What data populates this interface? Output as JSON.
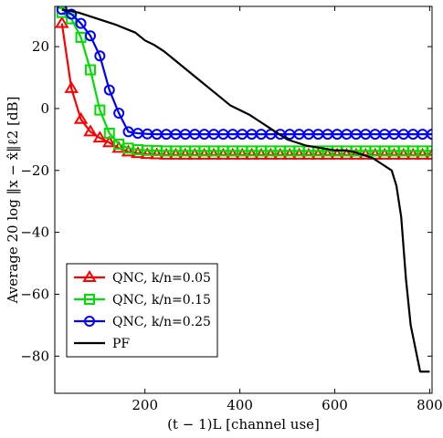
{
  "chart_data": {
    "type": "line",
    "title": "",
    "xlabel": "(t − 1)L  [channel use]",
    "ylabel": "Average 20 log ‖x − x̂‖ℓ2 [dB]",
    "xlim": [
      10,
      805
    ],
    "ylim": [
      -92,
      33
    ],
    "xticks": [
      200,
      400,
      600,
      800
    ],
    "yticks": [
      20,
      0,
      -20,
      -40,
      -60,
      -80
    ],
    "grid": false,
    "legend_position": "lower-left",
    "series": [
      {
        "name": "QNC, k/n=0.05",
        "color": "#ff0000",
        "marker": "triangle",
        "x": [
          25,
          45,
          65,
          85,
          105,
          125,
          145,
          165,
          185,
          205,
          225,
          245,
          265,
          285,
          305,
          325,
          345,
          365,
          385,
          405,
          425,
          445,
          465,
          485,
          505,
          525,
          545,
          565,
          585,
          605,
          625,
          645,
          665,
          685,
          705,
          725,
          745,
          765,
          785,
          805
        ],
        "y": [
          27.5,
          6.5,
          -3.5,
          -7.5,
          -9.5,
          -11,
          -12.8,
          -14,
          -14.5,
          -14.8,
          -14.9,
          -15,
          -15,
          -15,
          -15,
          -15,
          -15,
          -15,
          -15,
          -15,
          -15,
          -15,
          -15,
          -15,
          -15,
          -15,
          -15,
          -15,
          -15,
          -15,
          -15,
          -15,
          -15,
          -15,
          -15,
          -15,
          -15,
          -15,
          -15,
          -15
        ]
      },
      {
        "name": "QNC, k/n=0.15",
        "color": "#00dd00",
        "marker": "square",
        "x": [
          25,
          45,
          65,
          85,
          105,
          125,
          145,
          165,
          185,
          205,
          225,
          245,
          265,
          285,
          305,
          325,
          345,
          365,
          385,
          405,
          425,
          445,
          465,
          485,
          505,
          525,
          545,
          565,
          585,
          605,
          625,
          645,
          665,
          685,
          705,
          725,
          745,
          765,
          785,
          805
        ],
        "y": [
          31,
          29,
          23,
          12.5,
          -0.5,
          -8,
          -11.5,
          -12.8,
          -13.3,
          -13.5,
          -13.6,
          -13.7,
          -13.7,
          -13.7,
          -13.7,
          -13.7,
          -13.7,
          -13.7,
          -13.7,
          -13.7,
          -13.7,
          -13.7,
          -13.7,
          -13.7,
          -13.7,
          -13.7,
          -13.7,
          -13.7,
          -13.7,
          -13.7,
          -13.7,
          -13.7,
          -13.7,
          -13.7,
          -13.7,
          -13.7,
          -13.7,
          -13.7,
          -13.7,
          -13.7
        ]
      },
      {
        "name": "QNC, k/n=0.25",
        "color": "#0000ff",
        "marker": "circle",
        "x": [
          25,
          45,
          65,
          85,
          105,
          125,
          145,
          165,
          185,
          205,
          225,
          245,
          265,
          285,
          305,
          325,
          345,
          365,
          385,
          405,
          425,
          445,
          465,
          485,
          505,
          525,
          545,
          565,
          585,
          605,
          625,
          645,
          665,
          685,
          705,
          725,
          745,
          765,
          785,
          805
        ],
        "y": [
          32,
          30.5,
          27.5,
          23.5,
          17,
          6,
          -1.5,
          -7.5,
          -8,
          -8.2,
          -8.3,
          -8.3,
          -8.3,
          -8.3,
          -8.3,
          -8.3,
          -8.3,
          -8.3,
          -8.3,
          -8.3,
          -8.3,
          -8.3,
          -8.3,
          -8.3,
          -8.3,
          -8.3,
          -8.3,
          -8.3,
          -8.3,
          -8.3,
          -8.3,
          -8.3,
          -8.3,
          -8.3,
          -8.3,
          -8.3,
          -8.3,
          -8.3,
          -8.3,
          -8.3
        ]
      },
      {
        "name": "PF",
        "color": "#000000",
        "marker": "none",
        "x": [
          25,
          60,
          100,
          140,
          180,
          200,
          220,
          240,
          260,
          280,
          300,
          320,
          340,
          360,
          380,
          400,
          420,
          440,
          460,
          480,
          500,
          520,
          540,
          560,
          580,
          600,
          620,
          640,
          660,
          680,
          700,
          720,
          730,
          740,
          750,
          760,
          780,
          800
        ],
        "y": [
          32,
          31,
          29,
          27,
          24.5,
          22,
          20.5,
          18.5,
          16,
          13.5,
          11,
          8.5,
          6,
          3.5,
          1,
          -0.5,
          -2,
          -4,
          -6,
          -8,
          -10,
          -11,
          -12,
          -12.5,
          -13,
          -13.5,
          -13.5,
          -14,
          -15,
          -16,
          -18,
          -20,
          -25,
          -35,
          -55,
          -70,
          -85,
          -85
        ]
      }
    ]
  }
}
